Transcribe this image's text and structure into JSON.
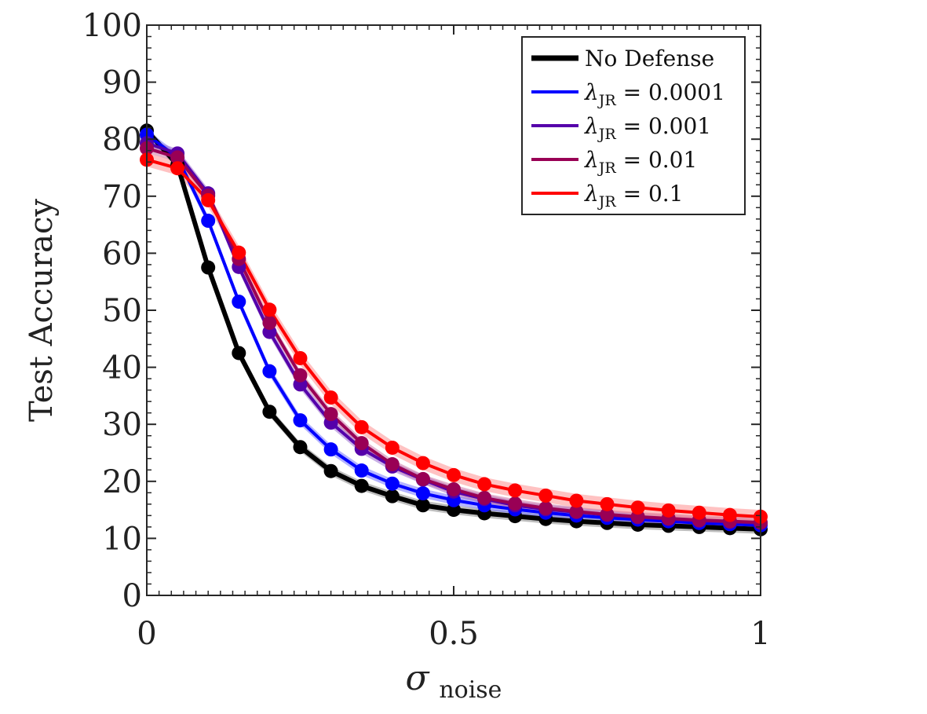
{
  "chart_data": {
    "type": "line",
    "title": "",
    "xlabel": "σ",
    "xlabel_sub": "noise",
    "ylabel": "Test Accuracy",
    "xlim": [
      0,
      1
    ],
    "ylim": [
      0,
      100
    ],
    "x_ticks": [
      0,
      0.5,
      1
    ],
    "x_tick_labels": [
      "0",
      "0.5",
      "1"
    ],
    "y_ticks": [
      0,
      10,
      20,
      30,
      40,
      50,
      60,
      70,
      80,
      90,
      100
    ],
    "y_tick_labels": [
      "0",
      "10",
      "20",
      "30",
      "40",
      "50",
      "60",
      "70",
      "80",
      "90",
      "100"
    ],
    "grid": false,
    "legend_position": "top-right",
    "x": [
      0,
      0.05,
      0.1,
      0.15,
      0.2,
      0.25,
      0.3,
      0.35,
      0.4,
      0.45,
      0.5,
      0.55,
      0.6,
      0.65,
      0.7,
      0.75,
      0.8,
      0.85,
      0.9,
      0.95,
      1.0
    ],
    "series": [
      {
        "name": "No Defense",
        "legend_label": "No Defense",
        "legend_sub": "",
        "legend_value": "",
        "color": "#000000",
        "band_color": "#888888",
        "values": [
          81.5,
          75.5,
          57.5,
          42.5,
          32.2,
          26.0,
          21.8,
          19.2,
          17.4,
          15.8,
          15.0,
          14.4,
          13.9,
          13.4,
          13.0,
          12.7,
          12.4,
          12.2,
          12.0,
          11.8,
          11.6
        ],
        "band": 0.8
      },
      {
        "name": "λJR = 0.0001",
        "legend_label": "λ",
        "legend_sub": "JR",
        "legend_value": " = 0.0001",
        "color": "#0000ff",
        "band_color": "#7777ff",
        "values": [
          80.8,
          76.8,
          65.7,
          51.5,
          39.3,
          30.7,
          25.6,
          21.9,
          19.6,
          17.9,
          16.7,
          15.8,
          15.1,
          14.5,
          14.0,
          13.6,
          13.3,
          13.0,
          12.7,
          12.5,
          12.3
        ],
        "band": 0.8
      },
      {
        "name": "λJR = 0.001",
        "legend_label": "λ",
        "legend_sub": "JR",
        "legend_value": " = 0.001",
        "color": "#5500aa",
        "band_color": "#9a6fd0",
        "values": [
          79.3,
          77.5,
          70.5,
          57.6,
          46.2,
          37.0,
          30.3,
          25.7,
          22.6,
          20.3,
          18.2,
          16.9,
          15.8,
          15.1,
          14.6,
          14.1,
          13.7,
          13.4,
          13.1,
          12.9,
          12.7
        ],
        "band": 0.8
      },
      {
        "name": "λJR = 0.01",
        "legend_label": "λ",
        "legend_sub": "JR",
        "legend_value": " = 0.01",
        "color": "#990055",
        "band_color": "#cc77a5",
        "values": [
          78.4,
          76.8,
          70.1,
          59.0,
          47.8,
          38.6,
          31.8,
          26.7,
          23.0,
          20.4,
          18.6,
          17.1,
          16.1,
          15.3,
          14.7,
          14.2,
          13.8,
          13.5,
          13.2,
          13.0,
          12.8
        ],
        "band": 0.8
      },
      {
        "name": "λJR = 0.1",
        "legend_label": "λ",
        "legend_sub": "JR",
        "legend_value": " = 0.1",
        "color": "#ff0000",
        "band_color": "#ff9090",
        "values": [
          76.4,
          74.9,
          69.3,
          60.1,
          50.1,
          41.6,
          34.7,
          29.5,
          25.9,
          23.2,
          21.1,
          19.5,
          18.4,
          17.5,
          16.6,
          16.0,
          15.4,
          14.9,
          14.5,
          14.1,
          13.8
        ],
        "band": 1.2
      }
    ]
  }
}
